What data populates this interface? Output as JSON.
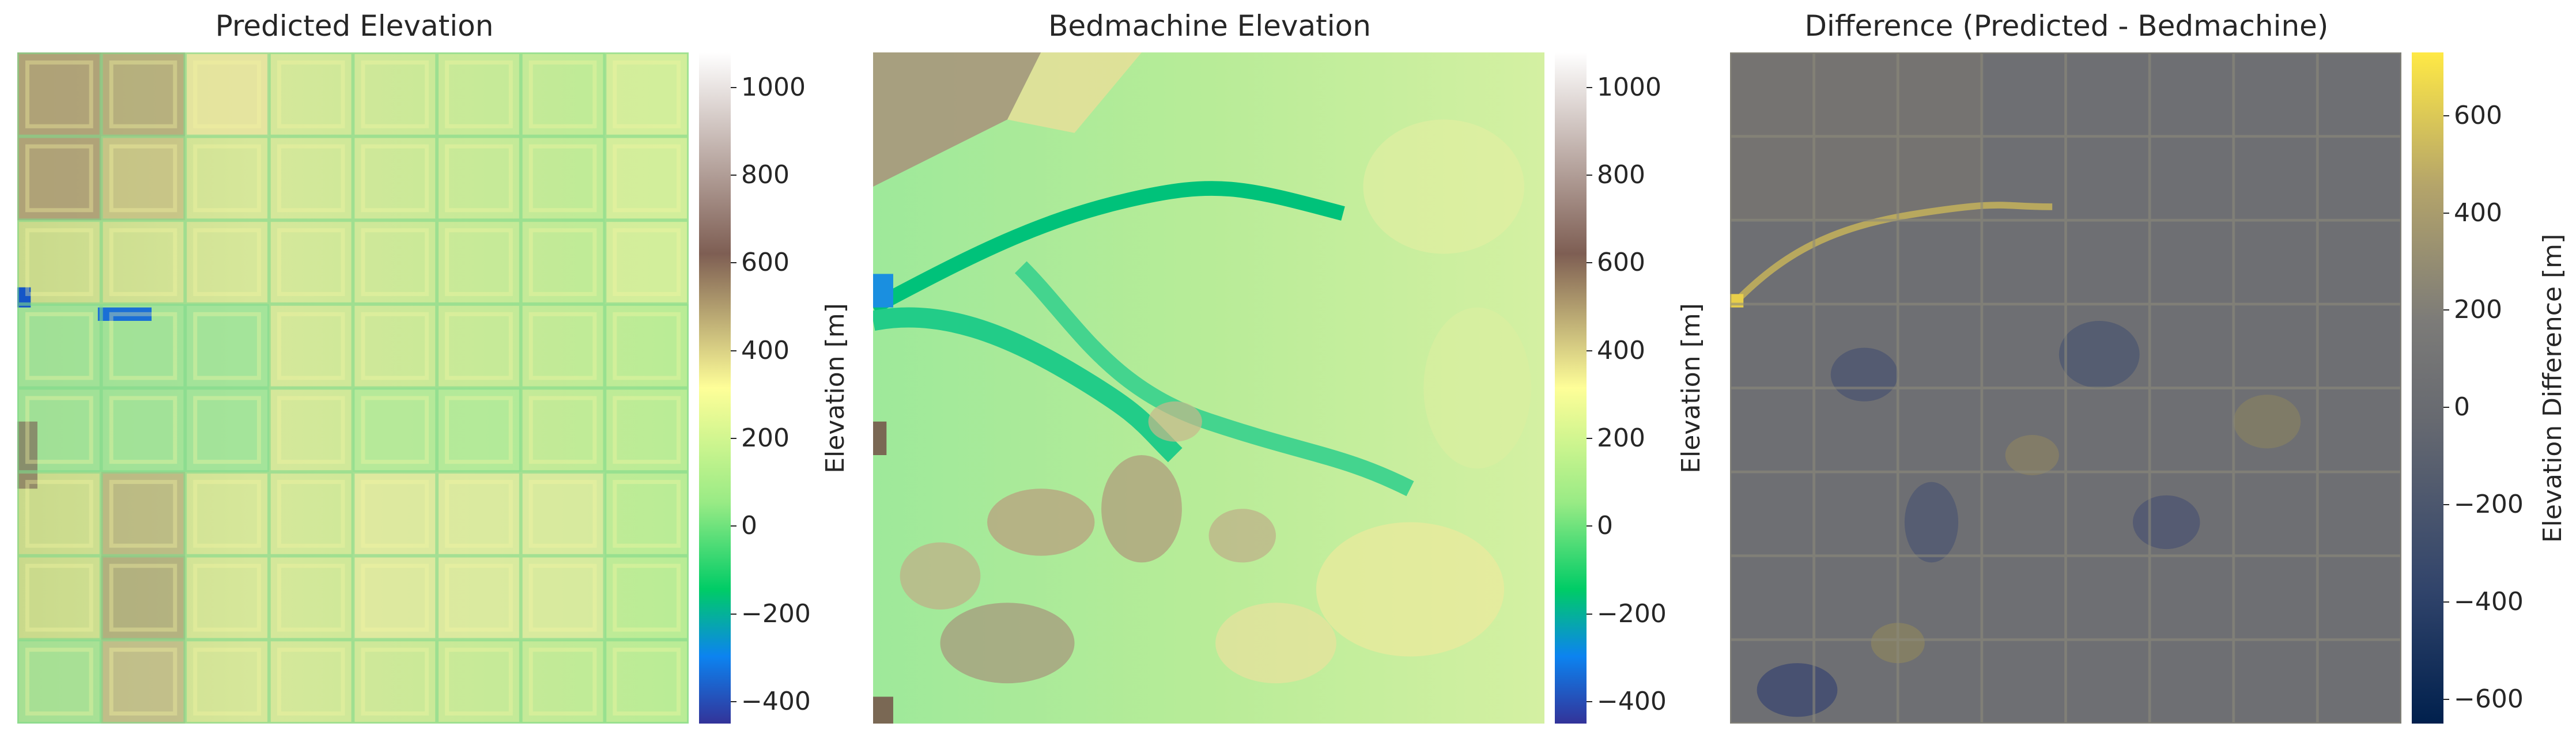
{
  "chart_data": [
    {
      "type": "heatmap",
      "title": "Predicted Elevation",
      "colormap": "terrain",
      "colorbar": {
        "label": "Elevation [m]",
        "range": [
          -450,
          1080
        ],
        "ticks": [
          -400,
          -200,
          0,
          200,
          400,
          600,
          800,
          1000
        ],
        "tick_labels": [
          "−400",
          "−200",
          "0",
          "200",
          "400",
          "600",
          "800",
          "1000"
        ]
      },
      "grid": false,
      "notes_visual": "tiled 8x8 prediction patches, mostly 100-400 m, higher (600-800 m) in upper-left, low channel (-400 m) at left-middle"
    },
    {
      "type": "heatmap",
      "title": "Bedmachine Elevation",
      "colormap": "terrain",
      "colorbar": {
        "label": "Elevation [m]",
        "range": [
          -450,
          1080
        ],
        "ticks": [
          -400,
          -200,
          0,
          200,
          400,
          600,
          800,
          1000
        ],
        "tick_labels": [
          "−400",
          "−200",
          "0",
          "200",
          "400",
          "600",
          "800",
          "1000"
        ]
      },
      "grid": false
    },
    {
      "type": "heatmap",
      "title": "Difference (Predicted - Bedmachine)",
      "colormap": "cividis",
      "colorbar": {
        "label": "Elevation Difference [m]",
        "range": [
          -650,
          730
        ],
        "ticks": [
          -600,
          -400,
          -200,
          0,
          200,
          400,
          600
        ],
        "tick_labels": [
          "−600",
          "−400",
          "−200",
          "0",
          "200",
          "400",
          "600"
        ]
      },
      "grid": false
    }
  ]
}
